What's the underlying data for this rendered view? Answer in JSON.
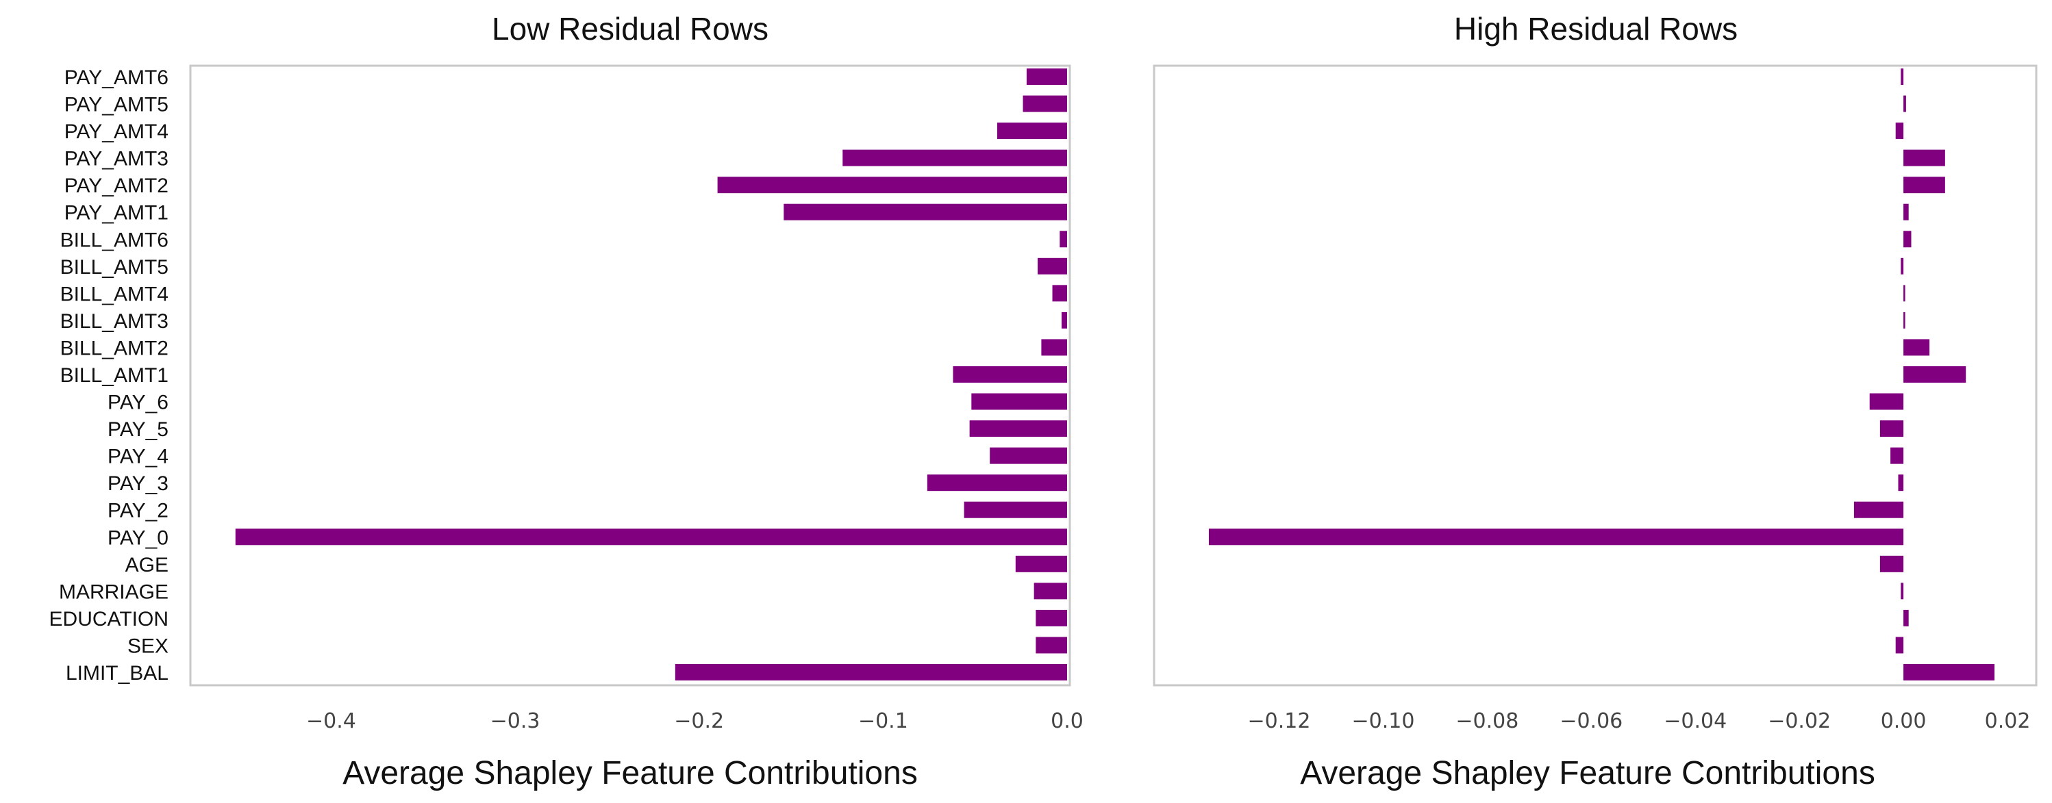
{
  "chart_data": [
    {
      "type": "bar",
      "orientation": "horizontal",
      "title": "Low Residual Rows",
      "xlabel": "Average Shapley Feature Contributions",
      "ylabel": "",
      "categories": [
        "LIMIT_BAL",
        "SEX",
        "EDUCATION",
        "MARRIAGE",
        "AGE",
        "PAY_0",
        "PAY_2",
        "PAY_3",
        "PAY_4",
        "PAY_5",
        "PAY_6",
        "BILL_AMT1",
        "BILL_AMT2",
        "BILL_AMT3",
        "BILL_AMT4",
        "BILL_AMT5",
        "BILL_AMT6",
        "PAY_AMT1",
        "PAY_AMT2",
        "PAY_AMT3",
        "PAY_AMT4",
        "PAY_AMT5",
        "PAY_AMT6"
      ],
      "values": [
        -0.213,
        -0.017,
        -0.017,
        -0.018,
        -0.028,
        -0.452,
        -0.056,
        -0.076,
        -0.042,
        -0.053,
        -0.052,
        -0.062,
        -0.014,
        -0.003,
        -0.008,
        -0.016,
        -0.004,
        -0.154,
        -0.19,
        -0.122,
        -0.038,
        -0.024,
        -0.022
      ],
      "xlim": [
        -0.475,
        0.0
      ],
      "xticks": [
        "-0.4",
        "-0.3",
        "-0.2",
        "-0.1",
        "0.0"
      ],
      "xtick_values": [
        -0.4,
        -0.3,
        -0.2,
        -0.1,
        0.0
      ],
      "grid": false,
      "bar_color": "#800080"
    },
    {
      "type": "bar",
      "orientation": "horizontal",
      "title": "High Residual Rows",
      "xlabel": "Average Shapley Feature Contributions",
      "ylabel": "",
      "categories": [
        "LIMIT_BAL",
        "SEX",
        "EDUCATION",
        "MARRIAGE",
        "AGE",
        "PAY_0",
        "PAY_2",
        "PAY_3",
        "PAY_4",
        "PAY_5",
        "PAY_6",
        "BILL_AMT1",
        "BILL_AMT2",
        "BILL_AMT3",
        "BILL_AMT4",
        "BILL_AMT5",
        "BILL_AMT6",
        "PAY_AMT1",
        "PAY_AMT2",
        "PAY_AMT3",
        "PAY_AMT4",
        "PAY_AMT5",
        "PAY_AMT6"
      ],
      "values": [
        0.0175,
        -0.0015,
        0.001,
        -0.0005,
        -0.0045,
        -0.1335,
        -0.0095,
        -0.001,
        -0.0025,
        -0.0045,
        -0.0065,
        0.012,
        0.005,
        0.0,
        0.0,
        -0.0005,
        0.0015,
        0.001,
        0.008,
        0.008,
        -0.0015,
        0.0005,
        -0.0005
      ],
      "xlim": [
        -0.1435,
        0.025
      ],
      "xticks": [
        "-0.12",
        "-0.10",
        "-0.08",
        "-0.06",
        "-0.04",
        "-0.02",
        "0.00",
        "0.02"
      ],
      "xtick_values": [
        -0.12,
        -0.1,
        -0.08,
        -0.06,
        -0.04,
        -0.02,
        0.0,
        0.02
      ],
      "grid": false,
      "bar_color": "#800080"
    }
  ]
}
